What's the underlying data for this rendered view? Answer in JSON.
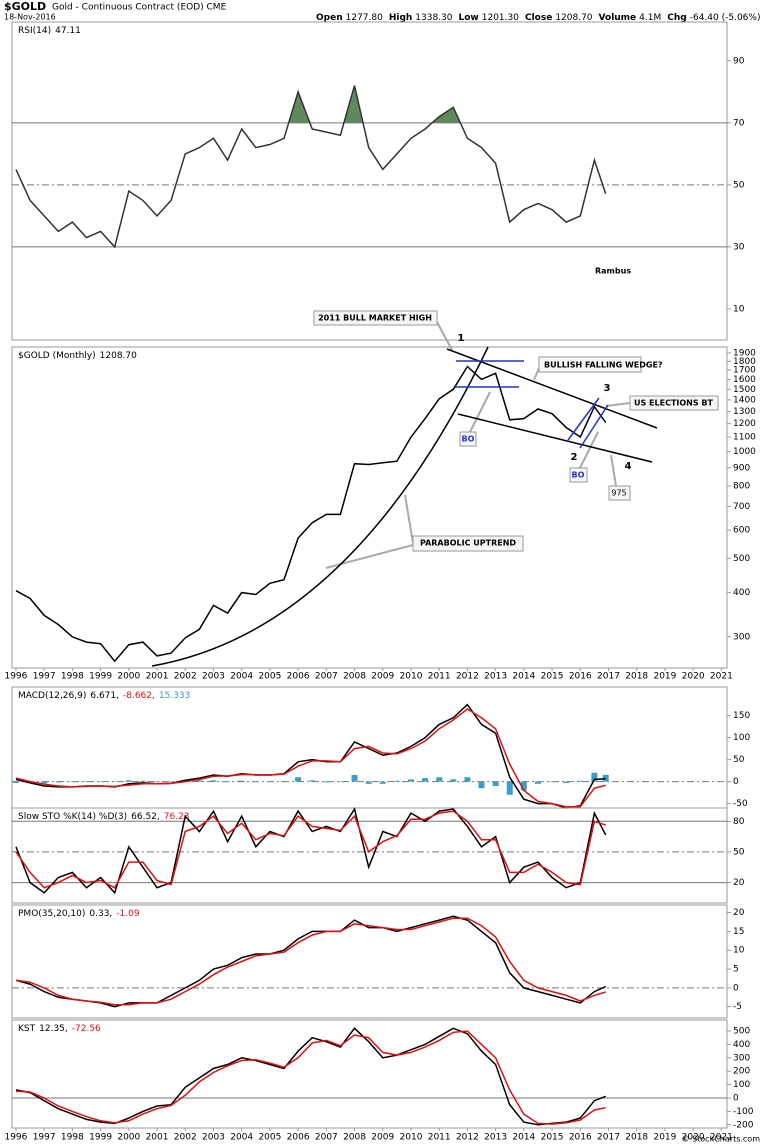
{
  "header": {
    "symbol": "$GOLD",
    "description": "Gold - Continuous Contract (EOD) CME",
    "date": "18-Nov-2016",
    "quote": [
      {
        "label": "Open",
        "value": "1277.80"
      },
      {
        "label": "High",
        "value": "1338.30"
      },
      {
        "label": "Low",
        "value": "1201.30"
      },
      {
        "label": "Close",
        "value": "1208.70"
      },
      {
        "label": "Volume",
        "value": "4.1M"
      },
      {
        "label": "Chg",
        "value": "-64.40 (-5.06%)"
      }
    ],
    "copyright": "© StockCharts.com"
  },
  "time_axis": {
    "x": [
      1996,
      1996.5,
      1997,
      1997.5,
      1998,
      1998.5,
      1999,
      1999.5,
      2000,
      2000.5,
      2001,
      2001.5,
      2002,
      2002.5,
      2003,
      2003.5,
      2004,
      2004.5,
      2005,
      2005.5,
      2006,
      2006.5,
      2007,
      2007.5,
      2008,
      2008.5,
      2009,
      2009.5,
      2010,
      2010.5,
      2011,
      2011.5,
      2012,
      2012.5,
      2013,
      2013.5,
      2014,
      2014.5,
      2015,
      2015.5,
      2016,
      2016.5,
      2016.9
    ],
    "xlim": [
      1995.86,
      2021.2
    ],
    "xticks": [
      1996,
      1997,
      1998,
      1999,
      2000,
      2001,
      2002,
      2003,
      2004,
      2005,
      2006,
      2007,
      2008,
      2009,
      2010,
      2011,
      2012,
      2013,
      2014,
      2015,
      2016,
      2017,
      2018,
      2019,
      2020,
      2021
    ]
  },
  "chart_data": [
    {
      "type": "line",
      "label": "RSI(14)",
      "readouts": [
        "47.11"
      ],
      "readout_colors": [
        "#000000"
      ],
      "annotation": "Rambus",
      "ylim": [
        0,
        102.5
      ],
      "yticks": [
        10,
        30,
        50,
        70,
        90
      ],
      "hlines": [
        30,
        50,
        70
      ],
      "hline_styles": [
        "solid",
        "dashed",
        "solid"
      ],
      "fill_above": 70,
      "fill_color": "#5e8a5e",
      "series": [
        {
          "color": "#333333",
          "values": [
            55,
            45,
            40,
            35,
            38,
            33,
            35,
            30,
            48,
            45,
            40,
            45,
            60,
            62,
            65,
            58,
            68,
            62,
            63,
            65,
            80,
            68,
            67,
            66,
            82,
            62,
            55,
            60,
            65,
            68,
            72,
            75,
            65,
            62,
            57,
            38,
            42,
            44,
            42,
            38,
            40,
            58,
            47.11
          ]
        }
      ]
    },
    {
      "type": "line",
      "log": true,
      "label": "$GOLD (Monthly)",
      "readouts": [
        "1208.70"
      ],
      "readout_colors": [
        "#000000"
      ],
      "ylim": [
        245,
        1975
      ],
      "yticks": [
        300,
        400,
        500,
        600,
        700,
        800,
        900,
        1000,
        1100,
        1200,
        1300,
        1400,
        1500,
        1600,
        1700,
        1800,
        1900
      ],
      "annotations": [
        "2011 BULL MARKET HIGH",
        "BULLISH FALLING WEDGE?",
        "US ELECTIONS BT",
        "PARABOLIC UPTREND",
        "1",
        "2",
        "3",
        "4",
        "BO",
        "BO",
        "975"
      ],
      "series": [
        {
          "color": "#000000",
          "values": [
            405,
            385,
            345,
            325,
            300,
            290,
            287,
            256,
            285,
            290,
            265,
            270,
            298,
            315,
            368,
            350,
            400,
            395,
            425,
            435,
            570,
            630,
            665,
            665,
            925,
            920,
            930,
            940,
            1100,
            1240,
            1410,
            1500,
            1740,
            1600,
            1665,
            1230,
            1240,
            1320,
            1280,
            1170,
            1100,
            1340,
            1208.7
          ]
        }
      ]
    },
    {
      "type": "line",
      "label": "MACD(12,26,9)",
      "readouts": [
        "6.671,",
        "-8.662,",
        "15.333"
      ],
      "readout_colors": [
        "#000000",
        "#e01010",
        "#3399cc"
      ],
      "ylim": [
        -60,
        215
      ],
      "yticks": [
        150,
        100,
        50,
        0,
        -50
      ],
      "hlines": [
        0
      ],
      "hline_styles": [
        "dashed"
      ],
      "series": [
        {
          "type": "bar",
          "color": "#3a9fc8",
          "values": [
            -3,
            -3,
            -4,
            -2,
            0,
            1,
            0,
            -1,
            3,
            2,
            0,
            0,
            3,
            3,
            3,
            -1,
            2,
            -1,
            0,
            1,
            10,
            3,
            -2,
            0,
            15,
            -5,
            -5,
            2,
            5,
            8,
            10,
            5,
            10,
            -15,
            -10,
            -30,
            -20,
            -5,
            0,
            -3,
            2,
            20,
            15.333
          ]
        },
        {
          "color": "#000000",
          "values": [
            5,
            -3,
            -10,
            -12,
            -12,
            -10,
            -10,
            -12,
            -5,
            -3,
            -5,
            -4,
            3,
            8,
            15,
            12,
            18,
            15,
            15,
            18,
            45,
            50,
            45,
            45,
            90,
            75,
            60,
            65,
            80,
            100,
            130,
            145,
            175,
            130,
            110,
            10,
            -40,
            -50,
            -50,
            -60,
            -55,
            5,
            6.671
          ]
        },
        {
          "color": "#e01010",
          "values": [
            8,
            0,
            -6,
            -10,
            -12,
            -11,
            -10,
            -11,
            -8,
            -5,
            -5,
            -4,
            0,
            5,
            12,
            13,
            16,
            16,
            15,
            17,
            35,
            47,
            47,
            45,
            75,
            80,
            65,
            63,
            75,
            92,
            120,
            140,
            165,
            145,
            120,
            40,
            -20,
            -45,
            -50,
            -57,
            -57,
            -15,
            -8.662
          ]
        }
      ]
    },
    {
      "type": "line",
      "label": "Slow STO %K(14) %D(3)",
      "readouts": [
        "66.52,",
        "76.23"
      ],
      "readout_colors": [
        "#000000",
        "#e01010"
      ],
      "ylim": [
        0,
        93
      ],
      "yticks": [
        80,
        50,
        20
      ],
      "hlines": [
        20,
        50,
        80
      ],
      "hline_styles": [
        "solid",
        "dashed",
        "solid"
      ],
      "series": [
        {
          "color": "#000000",
          "values": [
            55,
            20,
            10,
            25,
            30,
            15,
            25,
            10,
            55,
            35,
            15,
            20,
            85,
            70,
            90,
            60,
            85,
            55,
            70,
            65,
            90,
            70,
            75,
            70,
            92,
            35,
            70,
            65,
            88,
            80,
            90,
            92,
            75,
            55,
            65,
            20,
            35,
            40,
            25,
            15,
            20,
            88,
            66.52
          ]
        },
        {
          "color": "#e01010",
          "values": [
            50,
            30,
            15,
            20,
            27,
            20,
            22,
            15,
            40,
            40,
            22,
            18,
            70,
            75,
            85,
            68,
            78,
            62,
            68,
            66,
            85,
            75,
            73,
            71,
            85,
            50,
            60,
            66,
            82,
            82,
            88,
            90,
            80,
            62,
            62,
            30,
            30,
            38,
            30,
            20,
            18,
            80,
            76.23
          ]
        }
      ]
    },
    {
      "type": "line",
      "label": "PMO(35,20,10)",
      "readouts": [
        "0.33,",
        "-1.09"
      ],
      "readout_colors": [
        "#000000",
        "#e01010"
      ],
      "ylim": [
        -8,
        22
      ],
      "yticks": [
        20,
        15,
        10,
        5,
        0,
        -5
      ],
      "hlines": [
        0
      ],
      "hline_styles": [
        "dashed"
      ],
      "series": [
        {
          "color": "#000000",
          "values": [
            2,
            1,
            -1,
            -2.5,
            -3,
            -3.5,
            -4,
            -5,
            -4,
            -4,
            -4,
            -2,
            0,
            2,
            5,
            6,
            8,
            9,
            9,
            10,
            13,
            15,
            15,
            15,
            18,
            16,
            16,
            15,
            16,
            17,
            18,
            19,
            18,
            15,
            12,
            4,
            0,
            -1,
            -2,
            -3,
            -4,
            -1,
            0.33
          ]
        },
        {
          "color": "#e01010",
          "values": [
            2,
            1.5,
            0,
            -2,
            -3,
            -3.5,
            -3.8,
            -4.5,
            -4.5,
            -4,
            -4,
            -3,
            -1,
            1,
            3.5,
            5.5,
            7,
            8.5,
            9,
            9.5,
            12,
            14,
            15,
            15,
            17,
            16.5,
            16,
            15.5,
            15.5,
            16.5,
            17.5,
            18.5,
            18.5,
            16.5,
            13.5,
            7,
            2,
            0,
            -1,
            -2,
            -3.5,
            -2,
            -1.09
          ]
        }
      ]
    },
    {
      "type": "line",
      "label": "KST",
      "readouts": [
        "12.35,",
        "-72.56"
      ],
      "readout_colors": [
        "#000000",
        "#e01010"
      ],
      "ylim": [
        -224,
        582
      ],
      "yticks": [
        500,
        400,
        300,
        200,
        100,
        0,
        -100,
        -200
      ],
      "hlines": [
        0
      ],
      "hline_styles": [
        "solid"
      ],
      "series": [
        {
          "color": "#000000",
          "values": [
            60,
            40,
            -20,
            -80,
            -120,
            -160,
            -180,
            -190,
            -150,
            -100,
            -60,
            -50,
            80,
            150,
            220,
            250,
            300,
            280,
            250,
            220,
            350,
            450,
            420,
            380,
            520,
            420,
            300,
            320,
            360,
            400,
            460,
            520,
            480,
            350,
            250,
            -50,
            -180,
            -200,
            -190,
            -180,
            -150,
            -20,
            12.35
          ]
        },
        {
          "color": "#e01010",
          "values": [
            50,
            45,
            0,
            -60,
            -100,
            -140,
            -170,
            -185,
            -170,
            -120,
            -80,
            -55,
            20,
            120,
            190,
            240,
            280,
            285,
            260,
            230,
            300,
            410,
            430,
            390,
            470,
            450,
            340,
            320,
            340,
            380,
            430,
            490,
            500,
            400,
            300,
            60,
            -120,
            -190,
            -195,
            -185,
            -165,
            -90,
            -72.56
          ]
        }
      ]
    }
  ]
}
